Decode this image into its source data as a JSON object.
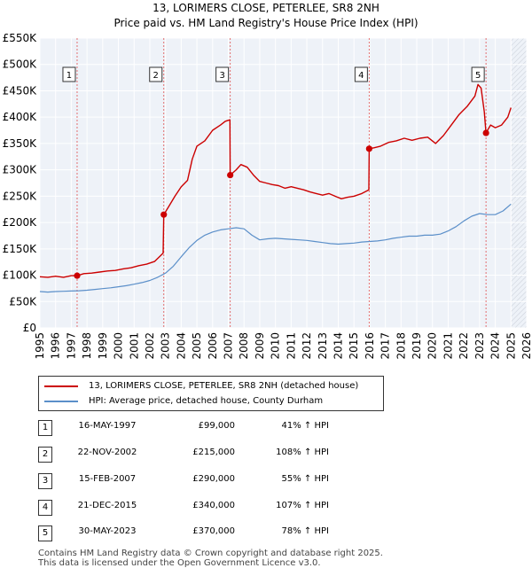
{
  "chart_data": {
    "type": "line",
    "title": "13, LORIMERS CLOSE, PETERLEE, SR8 2NH",
    "subtitle": "Price paid vs. HM Land Registry's House Price Index (HPI)",
    "xlabel": "",
    "ylabel": "",
    "xlim": [
      1995,
      2026
    ],
    "ylim": [
      0,
      550000
    ],
    "x_ticks": [
      "1995",
      "1996",
      "1997",
      "1998",
      "1999",
      "2000",
      "2001",
      "2002",
      "2003",
      "2004",
      "2005",
      "2006",
      "2007",
      "2008",
      "2009",
      "2010",
      "2011",
      "2012",
      "2013",
      "2014",
      "2015",
      "2016",
      "2017",
      "2018",
      "2019",
      "2020",
      "2021",
      "2022",
      "2023",
      "2024",
      "2025",
      "2026"
    ],
    "y_ticks": [
      {
        "value": 0,
        "label": "£0"
      },
      {
        "value": 50000,
        "label": "£50K"
      },
      {
        "value": 100000,
        "label": "£100K"
      },
      {
        "value": 150000,
        "label": "£150K"
      },
      {
        "value": 200000,
        "label": "£200K"
      },
      {
        "value": 250000,
        "label": "£250K"
      },
      {
        "value": 300000,
        "label": "£300K"
      },
      {
        "value": 350000,
        "label": "£350K"
      },
      {
        "value": 400000,
        "label": "£400K"
      },
      {
        "value": 450000,
        "label": "£450K"
      },
      {
        "value": 500000,
        "label": "£500K"
      },
      {
        "value": 550000,
        "label": "£550K"
      }
    ],
    "future_shade_start": 2025.0,
    "series": [
      {
        "name": "13, LORIMERS CLOSE, PETERLEE, SR8 2NH (detached house)",
        "color": "#cc0000",
        "x": [
          1995.0,
          1995.5,
          1996.0,
          1996.5,
          1997.0,
          1997.37,
          1997.8,
          1998.3,
          1998.8,
          1999.3,
          1999.8,
          2000.3,
          2000.8,
          2001.3,
          2001.8,
          2002.3,
          2002.85,
          2002.89,
          2003.2,
          2003.6,
          2004.0,
          2004.4,
          2004.7,
          2005.0,
          2005.5,
          2006.0,
          2006.5,
          2006.8,
          2007.1,
          2007.12,
          2007.5,
          2007.8,
          2008.2,
          2008.6,
          2009.0,
          2009.4,
          2009.8,
          2010.2,
          2010.6,
          2011.0,
          2011.4,
          2011.8,
          2012.2,
          2012.6,
          2013.0,
          2013.4,
          2013.8,
          2014.2,
          2014.6,
          2015.0,
          2015.5,
          2015.95,
          2015.97,
          2016.3,
          2016.7,
          2017.2,
          2017.7,
          2018.2,
          2018.7,
          2019.2,
          2019.7,
          2020.2,
          2020.7,
          2021.2,
          2021.7,
          2022.2,
          2022.7,
          2022.9,
          2023.1,
          2023.3,
          2023.41,
          2023.7,
          2024.0,
          2024.4,
          2024.8,
          2025.0
        ],
        "y": [
          97000,
          96000,
          98000,
          96000,
          99000,
          99000,
          103000,
          104000,
          106000,
          108000,
          109000,
          112000,
          114000,
          118000,
          121000,
          126000,
          142000,
          215000,
          230000,
          250000,
          268000,
          280000,
          320000,
          345000,
          355000,
          375000,
          385000,
          392000,
          395000,
          290000,
          300000,
          310000,
          305000,
          290000,
          278000,
          275000,
          272000,
          270000,
          265000,
          268000,
          265000,
          262000,
          258000,
          255000,
          252000,
          255000,
          250000,
          245000,
          248000,
          250000,
          255000,
          262000,
          340000,
          342000,
          345000,
          352000,
          355000,
          360000,
          356000,
          360000,
          362000,
          350000,
          365000,
          385000,
          405000,
          420000,
          440000,
          462000,
          455000,
          410000,
          370000,
          385000,
          380000,
          385000,
          400000,
          418000
        ]
      },
      {
        "name": "HPI: Average price, detached house, County Durham",
        "color": "#5b8fc9",
        "x": [
          1995.0,
          1995.5,
          1996.0,
          1996.5,
          1997.0,
          1997.5,
          1998.0,
          1998.5,
          1999.0,
          1999.5,
          2000.0,
          2000.5,
          2001.0,
          2001.5,
          2002.0,
          2002.5,
          2003.0,
          2003.5,
          2004.0,
          2004.5,
          2005.0,
          2005.5,
          2006.0,
          2006.5,
          2007.0,
          2007.5,
          2008.0,
          2008.5,
          2009.0,
          2009.5,
          2010.0,
          2010.5,
          2011.0,
          2011.5,
          2012.0,
          2012.5,
          2013.0,
          2013.5,
          2014.0,
          2014.5,
          2015.0,
          2015.5,
          2016.0,
          2016.5,
          2017.0,
          2017.5,
          2018.0,
          2018.5,
          2019.0,
          2019.5,
          2020.0,
          2020.5,
          2021.0,
          2021.5,
          2022.0,
          2022.5,
          2023.0,
          2023.5,
          2024.0,
          2024.5,
          2025.0
        ],
        "y": [
          69000,
          68000,
          69000,
          69500,
          70000,
          70500,
          71500,
          73000,
          74500,
          76000,
          78000,
          80000,
          83000,
          86000,
          90000,
          96000,
          104000,
          117000,
          135000,
          152000,
          166000,
          176000,
          182000,
          186000,
          188000,
          190000,
          188000,
          176000,
          167000,
          169000,
          170000,
          169000,
          168000,
          167000,
          166000,
          164000,
          162000,
          160000,
          159000,
          160000,
          161000,
          163000,
          164000,
          165000,
          167000,
          170000,
          172000,
          174000,
          174000,
          176000,
          176000,
          178000,
          184000,
          192000,
          203000,
          212000,
          217000,
          215000,
          215000,
          222000,
          235000
        ]
      }
    ],
    "sales": [
      {
        "num": "1",
        "x": 1997.37,
        "y": 99000
      },
      {
        "num": "2",
        "x": 2002.89,
        "y": 215000
      },
      {
        "num": "3",
        "x": 2007.12,
        "y": 290000
      },
      {
        "num": "4",
        "x": 2015.97,
        "y": 340000
      },
      {
        "num": "5",
        "x": 2023.41,
        "y": 370000
      }
    ]
  },
  "legend": {
    "property_label": "13, LORIMERS CLOSE, PETERLEE, SR8 2NH (detached house)",
    "hpi_label": "HPI: Average price, detached house, County Durham"
  },
  "transactions": [
    {
      "num": "1",
      "date": "16-MAY-1997",
      "price": "£99,000",
      "hpi": "41% ↑ HPI"
    },
    {
      "num": "2",
      "date": "22-NOV-2002",
      "price": "£215,000",
      "hpi": "108% ↑ HPI"
    },
    {
      "num": "3",
      "date": "15-FEB-2007",
      "price": "£290,000",
      "hpi": "55% ↑ HPI"
    },
    {
      "num": "4",
      "date": "21-DEC-2015",
      "price": "£340,000",
      "hpi": "107% ↑ HPI"
    },
    {
      "num": "5",
      "date": "30-MAY-2023",
      "price": "£370,000",
      "hpi": "78% ↑ HPI"
    }
  ],
  "footer": {
    "line1": "Contains HM Land Registry data © Crown copyright and database right 2025.",
    "line2": "This data is licensed under the Open Government Licence v3.0."
  }
}
